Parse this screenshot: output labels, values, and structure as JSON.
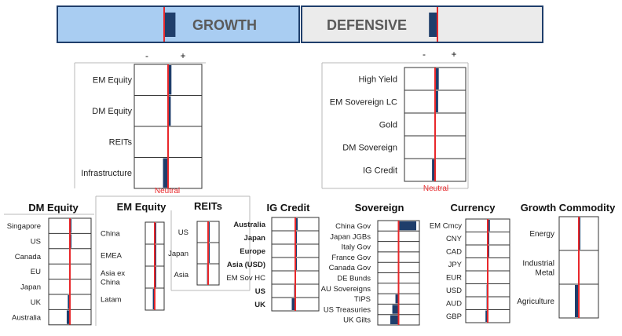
{
  "colors": {
    "growth_fill": "#a9cdf2",
    "defensive_fill": "#ebebeb",
    "bar": "#1f3e6b",
    "neutral_line": "#e8282b",
    "header_border": "#1f3e6b"
  },
  "header": {
    "growth_label": "GROWTH",
    "defensive_label": "DEFENSIVE",
    "growth_value": 0.4,
    "defensive_value": -0.3
  },
  "axis": {
    "minus": "-",
    "plus": "+"
  },
  "neutral_label": "Neutral",
  "chart_data": [
    {
      "type": "bar",
      "categories": [
        "EM Equity",
        "DM Equity",
        "REITs",
        "Infrastructure"
      ],
      "values": [
        0.1,
        0.08,
        0,
        -0.15
      ],
      "xlim": [
        -1,
        1
      ]
    },
    {
      "type": "bar",
      "categories": [
        "High Yield",
        "EM Sovereign LC",
        "Gold",
        "DM Sovereign",
        "IG Credit"
      ],
      "values": [
        0.12,
        0.1,
        0,
        0,
        -0.1
      ],
      "xlim": [
        -1,
        1
      ]
    },
    {
      "type": "bar",
      "title": "DM Equity",
      "categories": [
        "Singapore",
        "US",
        "Canada",
        "EU",
        "Japan",
        "UK",
        "Australia"
      ],
      "values": [
        0.06,
        0.06,
        0,
        0,
        0,
        -0.1,
        -0.15
      ],
      "xlim": [
        -1,
        1
      ]
    },
    {
      "type": "bar",
      "title": "EM Equity",
      "categories": [
        "China",
        "EMEA",
        "Asia ex China",
        "Latam"
      ],
      "values": [
        0.15,
        0.12,
        0.12,
        -0.2
      ],
      "xlim": [
        -1,
        1
      ]
    },
    {
      "type": "bar",
      "title": "REITs",
      "categories": [
        "US",
        "Japan",
        "Asia"
      ],
      "values": [
        0.12,
        0.12,
        -0.1
      ],
      "xlim": [
        -1,
        1
      ]
    },
    {
      "type": "bar",
      "title": "IG Credit",
      "categories": [
        "Australia",
        "Japan",
        "Europe",
        "Asia (USD)",
        "EM Sov HC",
        "US",
        "UK"
      ],
      "values": [
        0.1,
        0.05,
        0.05,
        0.05,
        0,
        -0.05,
        -0.15
      ],
      "xlim": [
        -1,
        1
      ]
    },
    {
      "type": "bar",
      "title": "Sovereign",
      "categories": [
        "China Gov",
        "Japan JGBs",
        "Italy Gov",
        "France Gov",
        "Canada Gov",
        "DE Bunds",
        "AU Sovereigns",
        "TIPS",
        "US Treasuries",
        "UK Gilts"
      ],
      "values": [
        0.85,
        0,
        0,
        0,
        0,
        0,
        0,
        -0.15,
        -0.3,
        -0.4
      ],
      "xlim": [
        -1,
        1
      ]
    },
    {
      "type": "bar",
      "title": "Currency",
      "categories": [
        "EM Cmcy",
        "CNY",
        "CAD",
        "JPY",
        "EUR",
        "USD",
        "AUD",
        "GBP"
      ],
      "values": [
        0.1,
        0.05,
        0.05,
        0,
        0,
        -0.05,
        -0.05,
        -0.1
      ],
      "xlim": [
        -1,
        1
      ]
    },
    {
      "type": "bar",
      "title": "Growth Commodity",
      "categories": [
        "Energy",
        "Industrial Metal",
        "Agriculture"
      ],
      "values": [
        0.08,
        0,
        -0.2
      ],
      "xlim": [
        -1,
        1
      ]
    }
  ]
}
